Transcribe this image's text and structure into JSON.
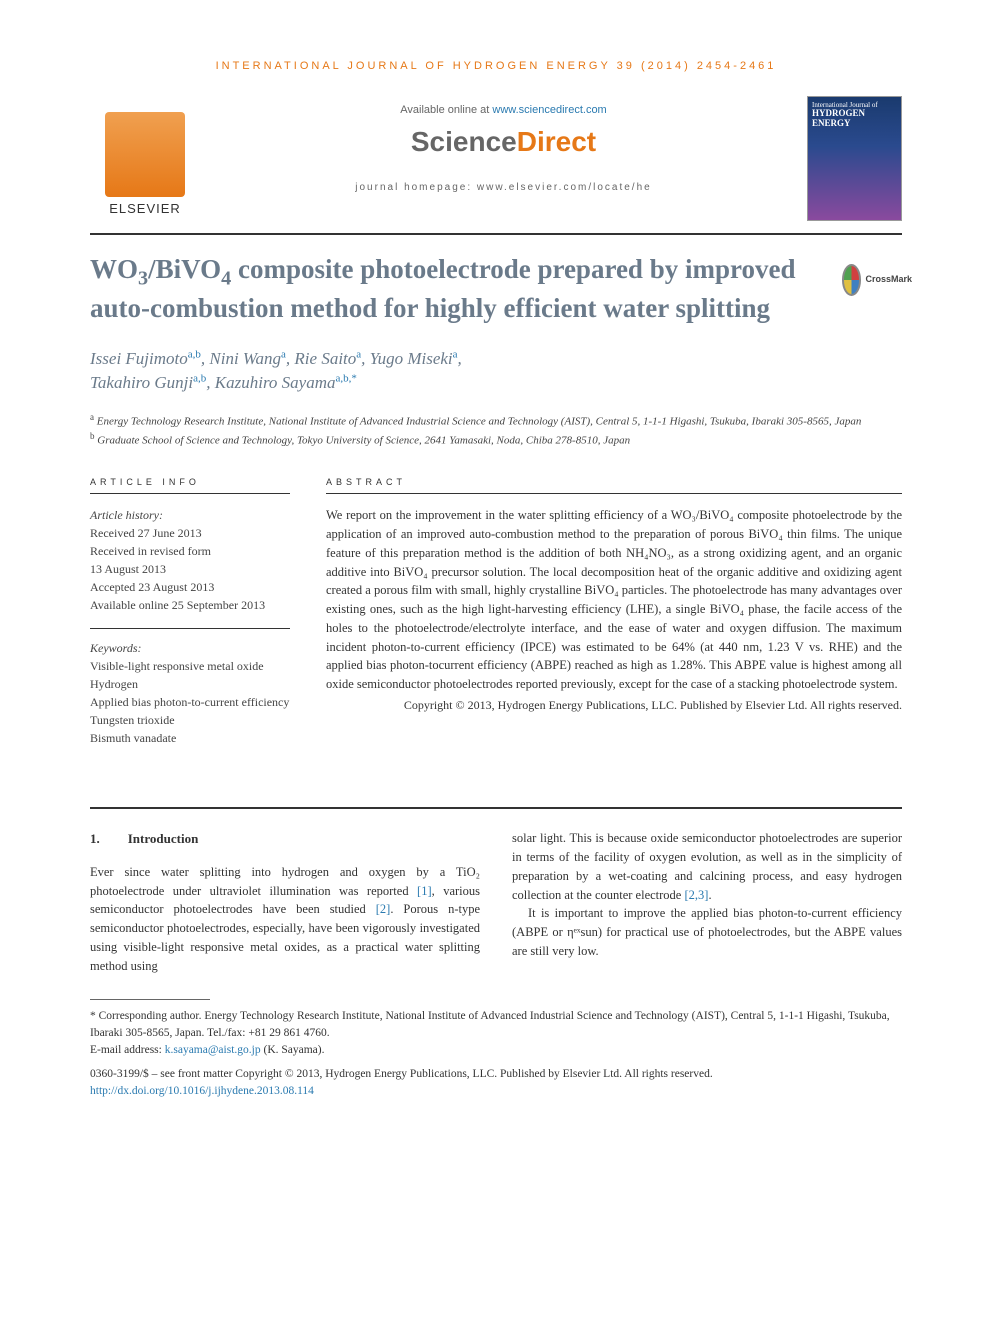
{
  "journal_header": "INTERNATIONAL JOURNAL OF HYDROGEN ENERGY 39 (2014) 2454-2461",
  "available_prefix": "Available online at ",
  "available_link": "www.sciencedirect.com",
  "sd_science": "Science",
  "sd_direct": "Direct",
  "journal_homepage": "journal homepage: www.elsevier.com/locate/he",
  "elsevier": "ELSEVIER",
  "cover": {
    "line1": "International Journal of",
    "line2": "HYDROGEN",
    "line3": "ENERGY"
  },
  "crossmark": "CrossMark",
  "title_parts": [
    "WO",
    "3",
    "/BiVO",
    "4",
    " composite photoelectrode prepared by improved auto-combustion method for highly efficient water splitting"
  ],
  "authors_html": "Issei Fujimoto|a,b|, Nini Wang|a|, Rie Saito|a|, Yugo Miseki|a|, Takahiro Gunji|a,b|, Kazuhiro Sayama|a,b,*|",
  "authors": [
    {
      "name": "Issei Fujimoto",
      "sup": "a,b"
    },
    {
      "name": "Nini Wang",
      "sup": "a"
    },
    {
      "name": "Rie Saito",
      "sup": "a"
    },
    {
      "name": "Yugo Miseki",
      "sup": "a"
    },
    {
      "name": "Takahiro Gunji",
      "sup": "a,b"
    },
    {
      "name": "Kazuhiro Sayama",
      "sup": "a,b,*"
    }
  ],
  "affiliations": [
    {
      "sup": "a",
      "text": "Energy Technology Research Institute, National Institute of Advanced Industrial Science and Technology (AIST), Central 5, 1-1-1 Higashi, Tsukuba, Ibaraki 305-8565, Japan"
    },
    {
      "sup": "b",
      "text": "Graduate School of Science and Technology, Tokyo University of Science, 2641 Yamasaki, Noda, Chiba 278-8510, Japan"
    }
  ],
  "labels": {
    "article_info": "ARTICLE INFO",
    "abstract": "ABSTRACT"
  },
  "history": {
    "heading": "Article history:",
    "lines": [
      "Received 27 June 2013",
      "Received in revised form",
      "13 August 2013",
      "Accepted 23 August 2013",
      "Available online 25 September 2013"
    ]
  },
  "keywords": {
    "heading": "Keywords:",
    "items": [
      "Visible-light responsive metal oxide",
      "Hydrogen",
      "Applied bias photon-to-current efficiency",
      "Tungsten trioxide",
      "Bismuth vanadate"
    ]
  },
  "abstract": "We report on the improvement in the water splitting efficiency of a WO₃/BiVO₄ composite photoelectrode by the application of an improved auto-combustion method to the preparation of porous BiVO₄ thin films. The unique feature of this preparation method is the addition of both NH₄NO₃, as a strong oxidizing agent, and an organic additive into BiVO₄ precursor solution. The local decomposition heat of the organic additive and oxidizing agent created a porous film with small, highly crystalline BiVO₄ particles. The photoelectrode has many advantages over existing ones, such as the high light-harvesting efficiency (LHE), a single BiVO₄ phase, the facile access of the holes to the photoelectrode/electrolyte interface, and the ease of water and oxygen diffusion. The maximum incident photon-to-current efficiency (IPCE) was estimated to be 64% (at 440 nm, 1.23 V vs. RHE) and the applied bias photon-tocurrent efficiency (ABPE) reached as high as 1.28%. This ABPE value is highest among all oxide semiconductor photoelectrodes reported previously, except for the case of a stacking photoelectrode system.",
  "abstract_copyright": "Copyright © 2013, Hydrogen Energy Publications, LLC. Published by Elsevier Ltd. All rights reserved.",
  "section1": {
    "num": "1.",
    "title": "Introduction"
  },
  "intro_p1_a": "Ever since water splitting into hydrogen and oxygen by a TiO₂ photoelectrode under ultraviolet illumination was reported ",
  "intro_ref1": "[1]",
  "intro_p1_b": ", various semiconductor photoelectrodes have been studied ",
  "intro_ref2": "[2]",
  "intro_p1_c": ". Porous n-type semiconductor photoelectrodes, especially, have been vigorously investigated using visible-light responsive metal oxides, as a practical water splitting method using",
  "intro_p2_a": "solar light. This is because oxide semiconductor photoelectrodes are superior in terms of the facility of oxygen evolution, as well as in the simplicity of preparation by a wet-coating and calcining process, and easy hydrogen collection at the counter electrode ",
  "intro_ref23": "[2,3]",
  "intro_p2_b": ".",
  "intro_p3": "It is important to improve the applied bias photon-to-current efficiency (ABPE or ηᵉˣsun) for practical use of photoelectrodes, but the ABPE values are still very low.",
  "footnote_corr": "* Corresponding author. Energy Technology Research Institute, National Institute of Advanced Industrial Science and Technology (AIST), Central 5, 1-1-1 Higashi, Tsukuba, Ibaraki 305-8565, Japan. Tel./fax: +81 29 861 4760.",
  "footnote_email_label": "E-mail address: ",
  "footnote_email": "k.sayama@aist.go.jp",
  "footnote_email_suffix": " (K. Sayama).",
  "issn_line": "0360-3199/$ – see front matter Copyright © 2013, Hydrogen Energy Publications, LLC. Published by Elsevier Ltd. All rights reserved.",
  "doi": "http://dx.doi.org/10.1016/j.ijhydene.2013.08.114",
  "colors": {
    "orange": "#e67817",
    "grayblue": "#6a7a8a",
    "link": "#2a7ab0"
  }
}
